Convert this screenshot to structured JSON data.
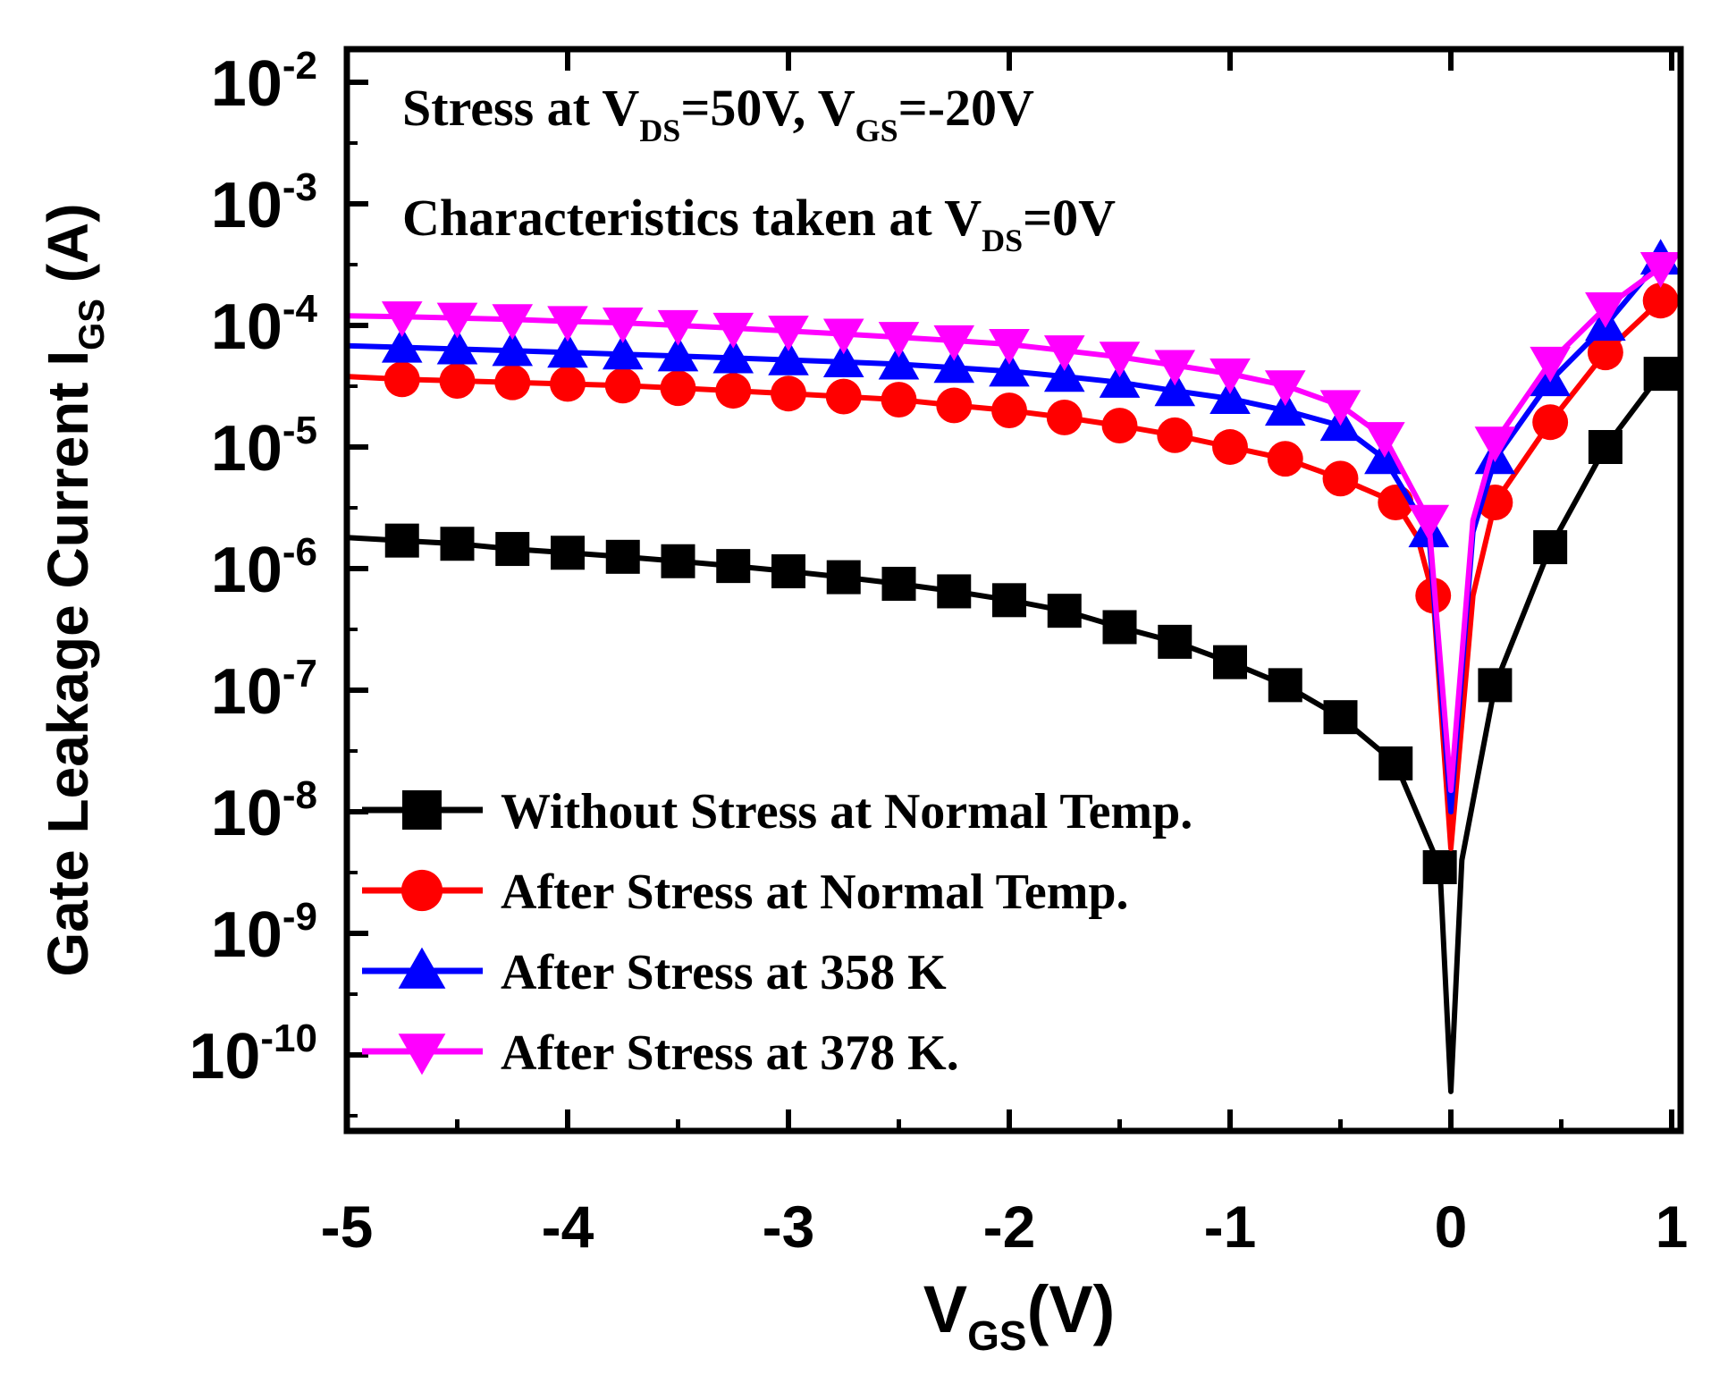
{
  "chart_data": {
    "type": "line",
    "title": "",
    "xlabel": {
      "main": "V",
      "sub": "GS",
      "tail": "(V)"
    },
    "ylabel": {
      "main": "Gate Leakage Current I",
      "sub": "GS",
      "tail": " (A)"
    },
    "xlim": [
      -5,
      1
    ],
    "ylim": [
      -10.5,
      -1.5
    ],
    "yscale": "log",
    "x_ticks": [
      {
        "value": -5,
        "label": "-5"
      },
      {
        "value": -4,
        "label": "-4"
      },
      {
        "value": -3,
        "label": "-3"
      },
      {
        "value": -2,
        "label": "-2"
      },
      {
        "value": -1,
        "label": "-1"
      },
      {
        "value": 0,
        "label": "0"
      },
      {
        "value": 1,
        "label": "1"
      }
    ],
    "y_ticks": [
      {
        "exp": -2,
        "base": "10",
        "sup": "-2"
      },
      {
        "exp": -3,
        "base": "10",
        "sup": "-3"
      },
      {
        "exp": -4,
        "base": "10",
        "sup": "-4"
      },
      {
        "exp": -5,
        "base": "10",
        "sup": "-5"
      },
      {
        "exp": -6,
        "base": "10",
        "sup": "-6"
      },
      {
        "exp": -7,
        "base": "10",
        "sup": "-7"
      },
      {
        "exp": -8,
        "base": "10",
        "sup": "-8"
      },
      {
        "exp": -9,
        "base": "10",
        "sup": "-9"
      },
      {
        "exp": -10,
        "base": "10",
        "sup": "-10"
      }
    ],
    "annotations": [
      {
        "parts": [
          [
            "Stress at V",
            "n"
          ],
          [
            "DS",
            "s"
          ],
          [
            "=50V, V",
            "n"
          ],
          [
            "GS",
            "s"
          ],
          [
            "=-20V",
            "n"
          ]
        ]
      },
      {
        "parts": [
          [
            "Characteristics taken at V",
            "n"
          ],
          [
            "DS",
            "s"
          ],
          [
            "=0V",
            "n"
          ]
        ]
      }
    ],
    "legend_position": "bottom-left",
    "grid": false,
    "series": [
      {
        "name": "Without Stress at Normal Temp.",
        "color": "#000000",
        "marker": "square",
        "points": [
          [
            -5,
            1.8e-06
          ],
          [
            -4.75,
            1.7e-06
          ],
          [
            -4.5,
            1.6e-06
          ],
          [
            -4.25,
            1.45e-06
          ],
          [
            -4,
            1.35e-06
          ],
          [
            -3.75,
            1.25e-06
          ],
          [
            -3.5,
            1.15e-06
          ],
          [
            -3.25,
            1.05e-06
          ],
          [
            -3,
            9.5e-07
          ],
          [
            -2.75,
            8.5e-07
          ],
          [
            -2.5,
            7.5e-07
          ],
          [
            -2.25,
            6.5e-07
          ],
          [
            -2,
            5.5e-07
          ],
          [
            -1.75,
            4.5e-07
          ],
          [
            -1.5,
            3.3e-07
          ],
          [
            -1.25,
            2.5e-07
          ],
          [
            -1,
            1.7e-07
          ],
          [
            -0.75,
            1.1e-07
          ],
          [
            -0.5,
            6e-08
          ],
          [
            -0.25,
            2.5e-08
          ],
          [
            -0.05,
            3.5e-09
          ],
          [
            0,
            5e-11
          ],
          [
            0.05,
            4e-09
          ],
          [
            0.2,
            1.1e-07
          ],
          [
            0.45,
            1.5e-06
          ],
          [
            0.7,
            1e-05
          ],
          [
            0.95,
            4e-05
          ]
        ],
        "markers_at": [
          -4.75,
          -4.5,
          -4.25,
          -4,
          -3.75,
          -3.5,
          -3.25,
          -3,
          -2.75,
          -2.5,
          -2.25,
          -2,
          -1.75,
          -1.5,
          -1.25,
          -1,
          -0.75,
          -0.5,
          -0.25,
          -0.05,
          0.2,
          0.45,
          0.7,
          0.95
        ]
      },
      {
        "name": "After Stress at Normal Temp.",
        "color": "#ff0000",
        "marker": "circle",
        "points": [
          [
            -5,
            3.8e-05
          ],
          [
            -4.75,
            3.6e-05
          ],
          [
            -4.5,
            3.5e-05
          ],
          [
            -4.25,
            3.4e-05
          ],
          [
            -4,
            3.3e-05
          ],
          [
            -3.75,
            3.2e-05
          ],
          [
            -3.5,
            3.05e-05
          ],
          [
            -3.25,
            2.9e-05
          ],
          [
            -3,
            2.75e-05
          ],
          [
            -2.75,
            2.6e-05
          ],
          [
            -2.5,
            2.45e-05
          ],
          [
            -2.25,
            2.2e-05
          ],
          [
            -2,
            2e-05
          ],
          [
            -1.75,
            1.75e-05
          ],
          [
            -1.5,
            1.5e-05
          ],
          [
            -1.25,
            1.25e-05
          ],
          [
            -1,
            1e-05
          ],
          [
            -0.75,
            8e-06
          ],
          [
            -0.5,
            5.5e-06
          ],
          [
            -0.25,
            3.5e-06
          ],
          [
            -0.15,
            1.8e-06
          ],
          [
            -0.08,
            6e-07
          ],
          [
            0,
            5e-09
          ],
          [
            0.1,
            6e-07
          ],
          [
            0.2,
            3.5e-06
          ],
          [
            0.45,
            1.6e-05
          ],
          [
            0.7,
            6e-05
          ],
          [
            0.95,
            0.00016
          ]
        ],
        "markers_at": [
          -4.75,
          -4.5,
          -4.25,
          -4,
          -3.75,
          -3.5,
          -3.25,
          -3,
          -2.75,
          -2.5,
          -2.25,
          -2,
          -1.75,
          -1.5,
          -1.25,
          -1,
          -0.75,
          -0.5,
          -0.25,
          -0.08,
          0.2,
          0.45,
          0.7,
          0.95
        ]
      },
      {
        "name": "After Stress at 358 K",
        "color": "#0000ff",
        "marker": "triangle-up",
        "points": [
          [
            -5,
            6.8e-05
          ],
          [
            -4.75,
            6.6e-05
          ],
          [
            -4.5,
            6.4e-05
          ],
          [
            -4.25,
            6.2e-05
          ],
          [
            -4,
            6e-05
          ],
          [
            -3.75,
            5.8e-05
          ],
          [
            -3.5,
            5.6e-05
          ],
          [
            -3.25,
            5.4e-05
          ],
          [
            -3,
            5.2e-05
          ],
          [
            -2.75,
            5e-05
          ],
          [
            -2.5,
            4.8e-05
          ],
          [
            -2.25,
            4.5e-05
          ],
          [
            -2,
            4.2e-05
          ],
          [
            -1.75,
            3.8e-05
          ],
          [
            -1.5,
            3.4e-05
          ],
          [
            -1.25,
            2.9e-05
          ],
          [
            -1,
            2.5e-05
          ],
          [
            -0.75,
            2e-05
          ],
          [
            -0.5,
            1.5e-05
          ],
          [
            -0.3,
            8e-06
          ],
          [
            -0.1,
            2e-06
          ],
          [
            0,
            1e-08
          ],
          [
            0.1,
            2e-06
          ],
          [
            0.2,
            8e-06
          ],
          [
            0.45,
            3.5e-05
          ],
          [
            0.7,
            0.0001
          ],
          [
            0.95,
            0.00035
          ]
        ],
        "markers_at": [
          -4.75,
          -4.5,
          -4.25,
          -4,
          -3.75,
          -3.5,
          -3.25,
          -3,
          -2.75,
          -2.5,
          -2.25,
          -2,
          -1.75,
          -1.5,
          -1.25,
          -1,
          -0.75,
          -0.5,
          -0.3,
          -0.1,
          0.2,
          0.45,
          0.7,
          0.95
        ]
      },
      {
        "name": "After Stress at 378 K.",
        "color": "#ff00ff",
        "marker": "triangle-down",
        "points": [
          [
            -5,
            0.00012
          ],
          [
            -4.75,
            0.000118
          ],
          [
            -4.5,
            0.000115
          ],
          [
            -4.25,
            0.000112
          ],
          [
            -4,
            0.000108
          ],
          [
            -3.75,
            0.000105
          ],
          [
            -3.5,
            0.0001
          ],
          [
            -3.25,
            9.5e-05
          ],
          [
            -3,
            9e-05
          ],
          [
            -2.75,
            8.5e-05
          ],
          [
            -2.5,
            8e-05
          ],
          [
            -2.25,
            7.5e-05
          ],
          [
            -2,
            7e-05
          ],
          [
            -1.75,
            6.2e-05
          ],
          [
            -1.5,
            5.5e-05
          ],
          [
            -1.25,
            4.7e-05
          ],
          [
            -1,
            4e-05
          ],
          [
            -0.75,
            3.2e-05
          ],
          [
            -0.5,
            2.2e-05
          ],
          [
            -0.3,
            1.2e-05
          ],
          [
            -0.1,
            2.5e-06
          ],
          [
            0,
            1.5e-08
          ],
          [
            0.1,
            2.5e-06
          ],
          [
            0.2,
            1.1e-05
          ],
          [
            0.45,
            5e-05
          ],
          [
            0.7,
            0.00014
          ],
          [
            0.95,
            0.0003
          ]
        ],
        "markers_at": [
          -4.75,
          -4.5,
          -4.25,
          -4,
          -3.75,
          -3.5,
          -3.25,
          -3,
          -2.75,
          -2.5,
          -2.25,
          -2,
          -1.75,
          -1.5,
          -1.25,
          -1,
          -0.75,
          -0.5,
          -0.3,
          -0.1,
          0.2,
          0.45,
          0.7,
          0.95
        ]
      }
    ]
  }
}
